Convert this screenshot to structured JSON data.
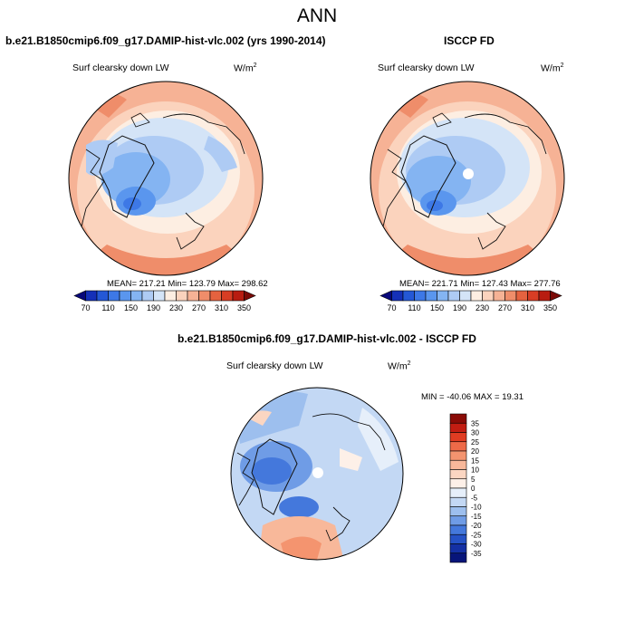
{
  "title": "ANN",
  "panels": [
    {
      "id": "model",
      "header": "b.e21.B1850cmip6.f09_g17.DAMIP-hist-vlc.002 (yrs 1990-2014)",
      "variable": "Surf clearsky down LW",
      "units_base": "W/m",
      "units_exp": "2",
      "stats": "MEAN= 217.21  Min= 123.79  Max= 298.62"
    },
    {
      "id": "obs",
      "header": "ISCCP FD",
      "variable": "Surf clearsky down LW",
      "units_base": "W/m",
      "units_exp": "2",
      "stats": "MEAN= 221.71  Min= 127.43  Max= 277.76"
    },
    {
      "id": "diff",
      "header": "b.e21.B1850cmip6.f09_g17.DAMIP-hist-vlc.002 - ISCCP FD",
      "variable": "Surf clearsky down LW",
      "units_base": "W/m",
      "units_exp": "2",
      "stats": "MIN = -40.06 MAX =  19.31"
    }
  ],
  "chart_data": [
    {
      "type": "heatmap",
      "projection": "north-polar-stereographic",
      "title": "Surf clearsky down LW",
      "units": "W/m2",
      "stats": {
        "mean": 217.21,
        "min": 123.79,
        "max": 298.62
      },
      "colorbar": {
        "orientation": "horizontal",
        "levels": [
          70,
          90,
          110,
          130,
          150,
          170,
          190,
          210,
          230,
          250,
          270,
          290,
          310,
          330,
          350
        ],
        "tick_labels": [
          "70",
          "110",
          "150",
          "190",
          "230",
          "270",
          "310",
          "350"
        ],
        "colors": [
          "#08087a",
          "#1530b8",
          "#2458d6",
          "#3d78e6",
          "#5a96ee",
          "#84b4f2",
          "#aecbf4",
          "#d4e4f7",
          "#fdeee2",
          "#fbd3bd",
          "#f6b295",
          "#ef8d6a",
          "#e5623f",
          "#d83d24",
          "#b81c10",
          "#7a0a06"
        ]
      }
    },
    {
      "type": "heatmap",
      "projection": "north-polar-stereographic",
      "title": "Surf clearsky down LW",
      "units": "W/m2",
      "stats": {
        "mean": 221.71,
        "min": 127.43,
        "max": 277.76
      },
      "colorbar": {
        "orientation": "horizontal",
        "levels": [
          70,
          90,
          110,
          130,
          150,
          170,
          190,
          210,
          230,
          250,
          270,
          290,
          310,
          330,
          350
        ],
        "tick_labels": [
          "70",
          "110",
          "150",
          "190",
          "230",
          "270",
          "310",
          "350"
        ],
        "colors": [
          "#08087a",
          "#1530b8",
          "#2458d6",
          "#3d78e6",
          "#5a96ee",
          "#84b4f2",
          "#aecbf4",
          "#d4e4f7",
          "#fdeee2",
          "#fbd3bd",
          "#f6b295",
          "#ef8d6a",
          "#e5623f",
          "#d83d24",
          "#b81c10",
          "#7a0a06"
        ]
      }
    },
    {
      "type": "heatmap",
      "projection": "north-polar-stereographic",
      "title": "Surf clearsky down LW",
      "units": "W/m2",
      "stats": {
        "min": -40.06,
        "max": 19.31
      },
      "colorbar": {
        "orientation": "vertical",
        "levels": [
          35,
          30,
          25,
          20,
          15,
          10,
          5,
          0,
          -5,
          -10,
          -15,
          -20,
          -25,
          -30,
          -35
        ],
        "tick_labels": [
          "35",
          "30",
          "25",
          "20",
          "15",
          "10",
          "5",
          "0",
          "-5",
          "-10",
          "-15",
          "-20",
          "-25",
          "-30",
          "-35"
        ],
        "colors": [
          "#8a0b06",
          "#c21d12",
          "#e03c22",
          "#ee6a48",
          "#f4946f",
          "#f8b89a",
          "#fbd6c2",
          "#fdf0e8",
          "#e6effa",
          "#c3d8f4",
          "#9dbfee",
          "#6f9ce6",
          "#4478dc",
          "#2552c6",
          "#1430a4",
          "#07157a"
        ]
      }
    }
  ]
}
